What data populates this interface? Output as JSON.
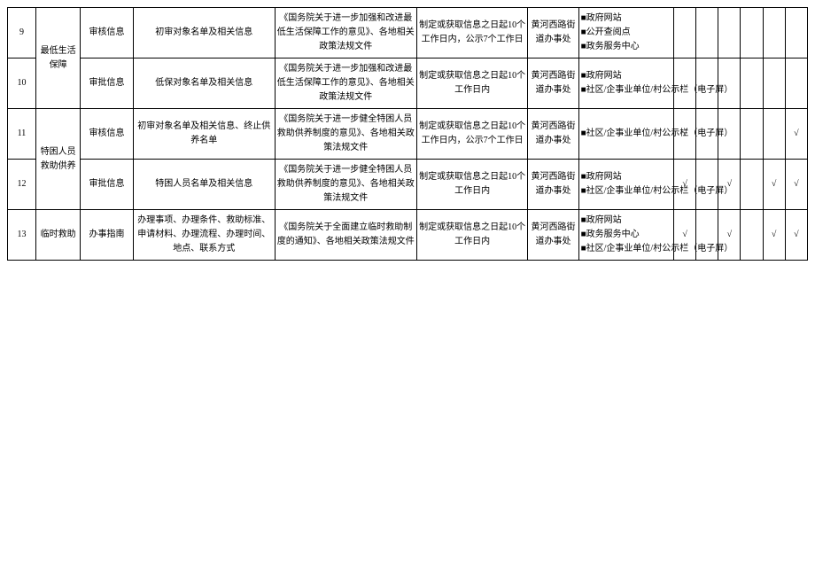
{
  "markerFilled": "■",
  "checkmark": "√",
  "rows": [
    {
      "idx": "9",
      "category": "最低生活保障",
      "type": "审核信息",
      "content": "初审对象名单及相关信息",
      "basis": "《国务院关于进一步加强和改进最低生活保障工作的意见》、各地相关政策法规文件",
      "time": "制定或获取信息之日起10个工作日内，公示7个工作日",
      "org": "黄河西路街道办事处",
      "channels": [
        "政府网站",
        "公开查阅点",
        "政务服务中心"
      ],
      "marks": [
        "",
        "",
        "",
        "",
        "",
        ""
      ]
    },
    {
      "idx": "10",
      "category": "最低生活保障",
      "type": "审批信息",
      "content": "低保对象名单及相关信息",
      "basis": "《国务院关于进一步加强和改进最低生活保障工作的意见》、各地相关政策法规文件",
      "time": "制定或获取信息之日起10个工作日内",
      "org": "黄河西路街道办事处",
      "channels": [
        "政府网站",
        "社区/企事业单位/村公示栏（电子屏）"
      ],
      "marks": [
        "",
        "",
        "",
        "",
        "",
        ""
      ]
    },
    {
      "idx": "11",
      "category": "",
      "type": "审核信息",
      "content": "初审对象名单及相关信息、终止供养名单",
      "basis": "《国务院关于进一步健全特困人员救助供养制度的意见》、各地相关政策法规文件",
      "time": "制定或获取信息之日起10个工作日内，公示7个工作日",
      "org": "黄河西路街道办事处",
      "channels": [
        "社区/企事业单位/村公示栏（电子屏）"
      ],
      "marks": [
        "√",
        "",
        "",
        "",
        "",
        "√"
      ]
    },
    {
      "idx": "12",
      "category": "特困人员救助供养",
      "type": "审批信息",
      "content": "特困人员名单及相关信息",
      "basis": "《国务院关于进一步健全特困人员救助供养制度的意见》、各地相关政策法规文件",
      "time": "制定或获取信息之日起10个工作日内",
      "org": "黄河西路街道办事处",
      "channels": [
        "政府网站",
        "社区/企事业单位/村公示栏（电子屏）"
      ],
      "marks": [
        "√",
        "",
        "√",
        "",
        "√",
        "√"
      ]
    },
    {
      "idx": "13",
      "category": "临时救助",
      "type": "办事指南",
      "content": "办理事项、办理条件、救助标准、申请材料、办理流程、办理时间、地点、联系方式",
      "basis": "《国务院关于全面建立临时救助制度的通知》、各地相关政策法规文件",
      "time": "制定或获取信息之日起10个工作日内",
      "org": "黄河西路街道办事处",
      "channels": [
        "政府网站",
        "政务服务中心",
        "社区/企事业单位/村公示栏（电子屏）"
      ],
      "marks": [
        "√",
        "",
        "√",
        "",
        "√",
        "√"
      ]
    }
  ]
}
